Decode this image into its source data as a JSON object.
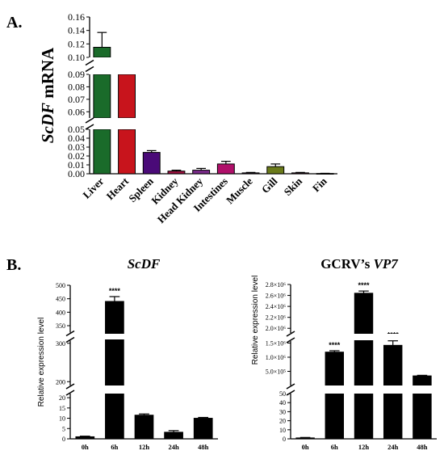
{
  "panel_a_label": "A.",
  "panel_b_label": "B.",
  "chart_data": [
    {
      "id": "tissue",
      "type": "bar",
      "ylabel_italic": "ScDF",
      "ylabel_rest": " mRNA",
      "categories": [
        "Liver",
        "Heart",
        "Spleen",
        "Kidney",
        "Head Kidney",
        "Intestines",
        "Muscle",
        "Gill",
        "Skin",
        "Fin"
      ],
      "values": [
        0.115,
        0.097,
        0.024,
        0.003,
        0.004,
        0.011,
        0.001,
        0.008,
        0.001,
        0.0003
      ],
      "errors": [
        0.022,
        0.005,
        0.002,
        0.001,
        0.002,
        0.003,
        0.0005,
        0.003,
        0.0005,
        0.0002
      ],
      "colors": [
        "#1a6b2a",
        "#c8141c",
        "#4a0a78",
        "#a01040",
        "#7a2a8a",
        "#b0106a",
        "#6a1a6a",
        "#6a7a1a",
        "#9a1a5a",
        "#8a2a7a"
      ],
      "yticks_top": [
        "0.16",
        "0.14",
        "0.12",
        "0.10"
      ],
      "yticks_mid": [
        "0.09",
        "0.08",
        "0.07",
        "0.06"
      ],
      "yticks_low": [
        "0.05",
        "0.04",
        "0.03",
        "0.02",
        "0.01",
        "0.00"
      ],
      "broken_axis": true
    },
    {
      "id": "scdf_time",
      "type": "bar",
      "title_italic": "ScDF",
      "title_prefix": "",
      "ylabel": "Relative expression level",
      "categories": [
        "0h",
        "6h",
        "12h",
        "24h",
        "48h"
      ],
      "values": [
        1,
        440,
        11.5,
        3.2,
        10
      ],
      "errors": [
        0.3,
        18,
        0.6,
        0.8,
        0.4
      ],
      "stars": [
        "",
        "****",
        "",
        "",
        ""
      ],
      "color": "#000000",
      "yticks_top": [
        "500",
        "450",
        "400",
        "350"
      ],
      "yticks_mid": [
        "300",
        "200"
      ],
      "yticks_low": [
        "20",
        "15",
        "10",
        "5",
        "0"
      ],
      "broken_axis": true
    },
    {
      "id": "vp7_time",
      "type": "bar",
      "title_prefix": "GCRV’s ",
      "title_italic": "VP7",
      "ylabel": "Relative expression level",
      "categories": [
        "0h",
        "6h",
        "12h",
        "24h",
        "48h"
      ],
      "values": [
        1,
        1180000,
        2640000,
        1420000,
        340000
      ],
      "errors": [
        0.5,
        50000,
        40000,
        160000,
        20000
      ],
      "stars": [
        "",
        "****",
        "****",
        "****",
        ""
      ],
      "color": "#000000",
      "yticks_top": [
        "2.8×10⁶",
        "2.6×10⁶",
        "2.4×10⁶",
        "2.2×10⁶",
        "2.0×10⁶"
      ],
      "yticks_mid": [
        "1.5×10⁶",
        "1.0×10⁶",
        "5.0×10⁵"
      ],
      "yticks_low": [
        "50",
        "40",
        "30",
        "20",
        "10",
        "0"
      ],
      "broken_axis": true
    }
  ]
}
